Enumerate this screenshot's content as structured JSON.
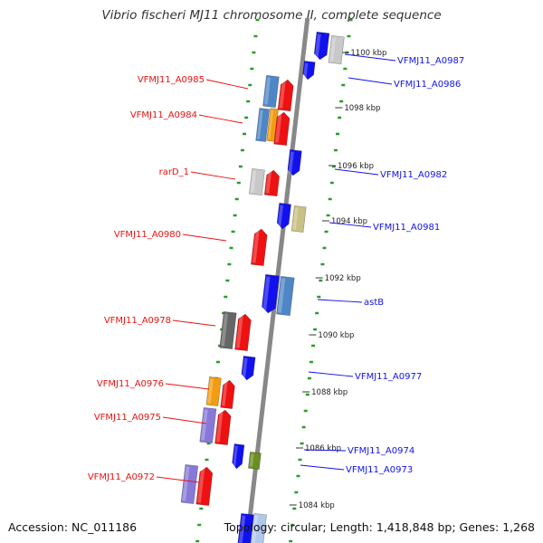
{
  "title": "Vibrio fischeri MJ11 chromosome II, complete sequence",
  "accession": "Accession: NC_011186",
  "topology": "Topology: circular; Length: 1,418,848 bp; Genes: 1,268",
  "colors": {
    "red": "#ee1111",
    "blue": "#1111ee",
    "steel": "#4f86c6",
    "orange": "#f39c12",
    "lightgray": "#c8c8c8",
    "darkgray": "#666666",
    "purple": "#8878d8",
    "khaki": "#c8c084",
    "olive": "#6b8e23",
    "paleblue": "#b0c8ec",
    "ruler": "#2a9d2a",
    "backbone": "#888888"
  },
  "tick_labels": [
    "1100 kbp",
    "1098 kbp",
    "1096 kbp",
    "1094 kbp",
    "1092 kbp",
    "1090 kbp",
    "1088 kbp",
    "1086 kbp",
    "1084 kbp"
  ],
  "left_labels": [
    "VFMJ11_A0985",
    "VFMJ11_A0984",
    "rarD_1",
    "VFMJ11_A0980",
    "VFMJ11_A0978",
    "VFMJ11_A0976",
    "VFMJ11_A0975",
    "VFMJ11_A0972"
  ],
  "right_labels": [
    "VFMJ11_A0987",
    "VFMJ11_A0986",
    "VFMJ11_A0982",
    "VFMJ11_A0981",
    "astB",
    "VFMJ11_A0977",
    "VFMJ11_A0974",
    "VFMJ11_A0973"
  ],
  "genes": [
    {
      "strand": "right",
      "kind": "arrow",
      "color": "blue"
    },
    {
      "strand": "right",
      "kind": "box",
      "color": "lightgray"
    },
    {
      "strand": "right",
      "kind": "arrow",
      "color": "blue"
    },
    {
      "strand": "left",
      "kind": "box",
      "color": "steel"
    },
    {
      "strand": "left",
      "kind": "arrow",
      "color": "red"
    },
    {
      "strand": "left",
      "kind": "box",
      "color": "steel"
    },
    {
      "strand": "left",
      "kind": "box",
      "color": "orange"
    },
    {
      "strand": "left",
      "kind": "arrow",
      "color": "red"
    },
    {
      "strand": "right",
      "kind": "arrow",
      "color": "blue"
    },
    {
      "strand": "left",
      "kind": "box",
      "color": "lightgray"
    },
    {
      "strand": "left",
      "kind": "arrow",
      "color": "red"
    },
    {
      "strand": "right",
      "kind": "arrow",
      "color": "blue"
    },
    {
      "strand": "right",
      "kind": "box",
      "color": "khaki"
    },
    {
      "strand": "left",
      "kind": "arrow",
      "color": "red"
    },
    {
      "strand": "right",
      "kind": "arrow",
      "color": "blue"
    },
    {
      "strand": "right",
      "kind": "box",
      "color": "steel"
    },
    {
      "strand": "left",
      "kind": "box",
      "color": "darkgray"
    },
    {
      "strand": "left",
      "kind": "arrow",
      "color": "red"
    },
    {
      "strand": "right",
      "kind": "arrow",
      "color": "blue"
    },
    {
      "strand": "left",
      "kind": "box",
      "color": "orange"
    },
    {
      "strand": "left",
      "kind": "arrow",
      "color": "red"
    },
    {
      "strand": "left",
      "kind": "box",
      "color": "purple"
    },
    {
      "strand": "left",
      "kind": "arrow",
      "color": "red"
    },
    {
      "strand": "right",
      "kind": "arrow",
      "color": "blue"
    },
    {
      "strand": "right",
      "kind": "box",
      "color": "olive"
    },
    {
      "strand": "left",
      "kind": "box",
      "color": "purple"
    },
    {
      "strand": "left",
      "kind": "arrow",
      "color": "red"
    },
    {
      "strand": "right",
      "kind": "box",
      "color": "blue"
    },
    {
      "strand": "right",
      "kind": "box",
      "color": "paleblue"
    }
  ]
}
